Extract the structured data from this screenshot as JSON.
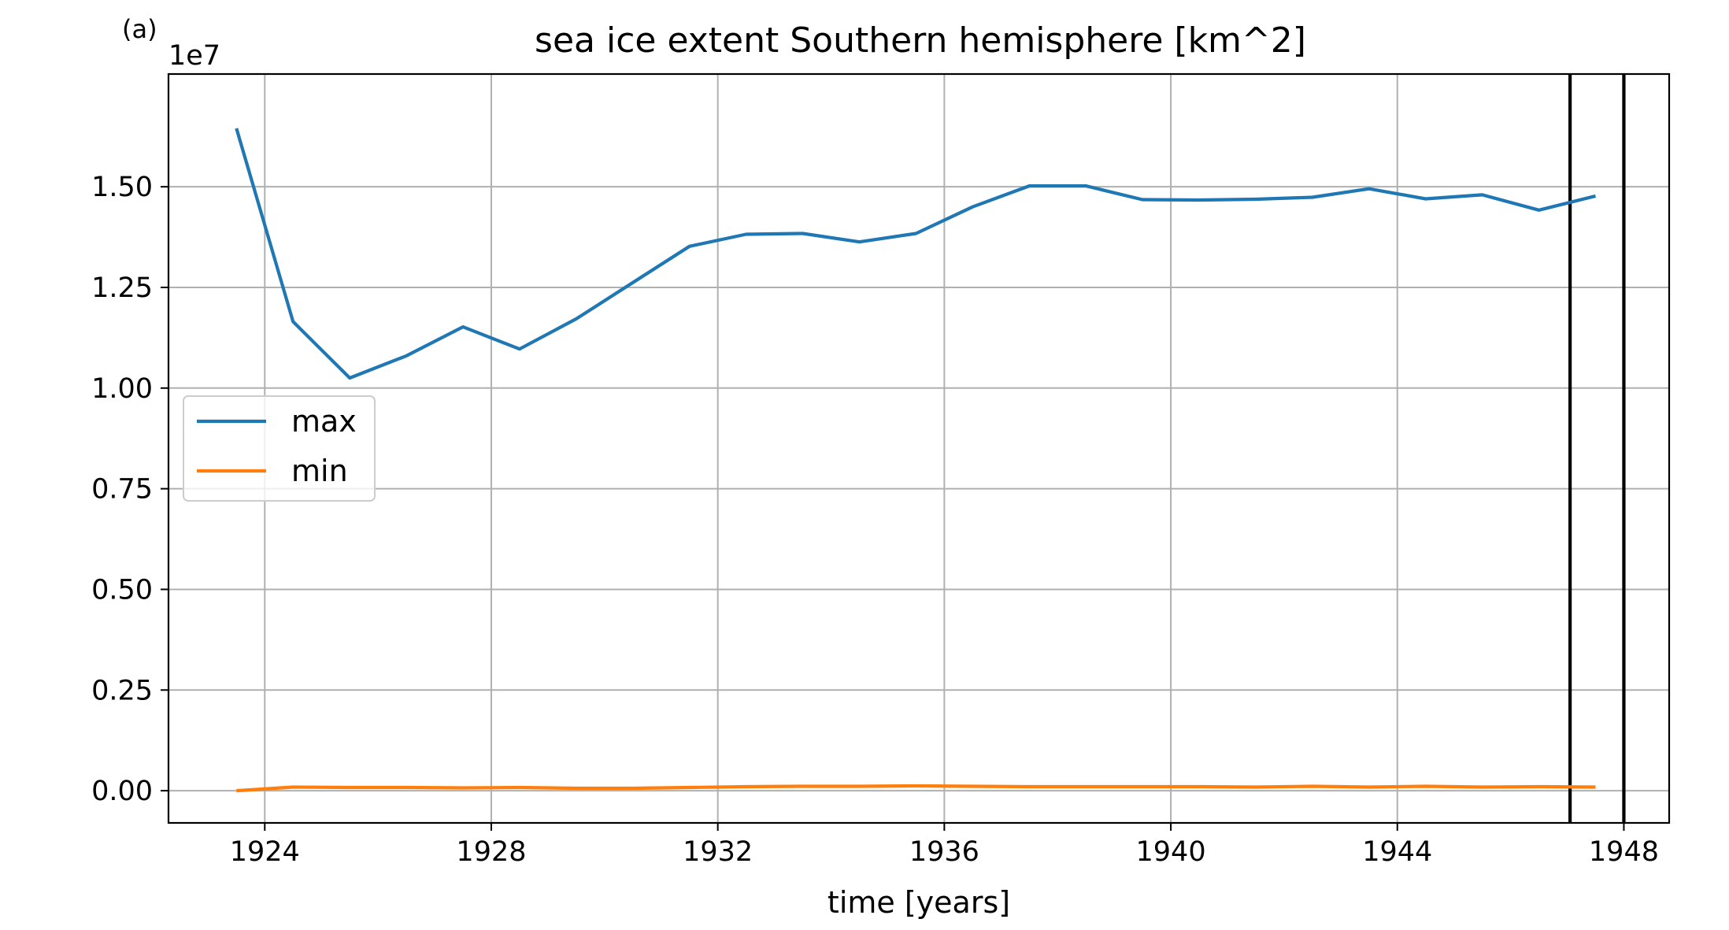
{
  "panel_label": "(a)",
  "chart_data": {
    "type": "line",
    "title": "sea ice extent Southern hemisphere [km^2]",
    "xlabel": "time [years]",
    "ylabel": "",
    "y_offset_label": "1e7",
    "y_scale": 10000000,
    "xlim": [
      1922.3,
      1948.8
    ],
    "ylim": [
      -0.08,
      1.78
    ],
    "x_ticks": [
      1924,
      1928,
      1932,
      1936,
      1940,
      1944,
      1948
    ],
    "y_ticks": [
      0.0,
      0.25,
      0.5,
      0.75,
      1.0,
      1.25,
      1.5
    ],
    "y_tick_labels": [
      "0.00",
      "0.25",
      "0.50",
      "0.75",
      "1.00",
      "1.25",
      "1.50"
    ],
    "grid": true,
    "legend_position": "center-left",
    "x": [
      1923.5,
      1924.5,
      1925.5,
      1926.5,
      1927.5,
      1928.5,
      1929.5,
      1930.5,
      1931.5,
      1932.5,
      1933.5,
      1934.5,
      1935.5,
      1936.5,
      1937.5,
      1938.5,
      1939.5,
      1940.5,
      1941.5,
      1942.5,
      1943.5,
      1944.5,
      1945.5,
      1946.5,
      1947.5
    ],
    "series": [
      {
        "name": "max",
        "color": "#1f77b4",
        "values": [
          1.645,
          1.165,
          1.025,
          1.08,
          1.152,
          1.097,
          1.172,
          1.262,
          1.352,
          1.382,
          1.384,
          1.363,
          1.384,
          1.45,
          1.502,
          1.502,
          1.468,
          1.467,
          1.469,
          1.474,
          1.495,
          1.47,
          1.48,
          1.442,
          1.477
        ]
      },
      {
        "name": "min",
        "color": "#ff7f0e",
        "values": [
          0.0,
          0.009,
          0.008,
          0.008,
          0.007,
          0.008,
          0.006,
          0.006,
          0.008,
          0.01,
          0.011,
          0.011,
          0.012,
          0.011,
          0.01,
          0.01,
          0.01,
          0.01,
          0.009,
          0.011,
          0.009,
          0.011,
          0.009,
          0.01,
          0.009
        ]
      }
    ],
    "vlines": [
      {
        "x": 1947.05,
        "color": "#000000"
      },
      {
        "x": 1948.0,
        "color": "#000000"
      }
    ]
  }
}
